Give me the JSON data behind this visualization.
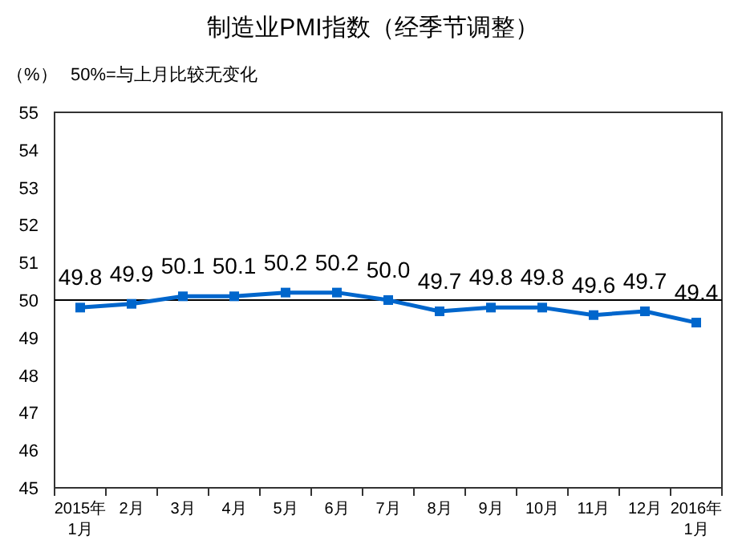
{
  "chart_data": {
    "type": "line",
    "title": "制造业PMI指数（经季节调整）",
    "ylabel": "（%）",
    "annotations": [
      "50%=与上月比较无变化"
    ],
    "categories": [
      "2015年\n1月",
      "2月",
      "3月",
      "4月",
      "5月",
      "6月",
      "7月",
      "8月",
      "9月",
      "10月",
      "11月",
      "12月",
      "2016年\n1月"
    ],
    "series": [
      {
        "color": "#0066cc",
        "values": [
          49.8,
          49.9,
          50.1,
          50.1,
          50.2,
          50.2,
          50.0,
          49.7,
          49.8,
          49.8,
          49.6,
          49.7,
          49.4
        ],
        "value_labels": [
          "49.8",
          "49.9",
          "50.1",
          "50.1",
          "50.2",
          "50.2",
          "50.0",
          "49.7",
          "49.8",
          "49.8",
          "49.6",
          "49.7",
          "49.4"
        ]
      }
    ],
    "ylim": [
      45,
      55
    ],
    "yticks": [
      45,
      46,
      47,
      48,
      49,
      50,
      51,
      52,
      53,
      54,
      55
    ],
    "ref_lines": [
      {
        "axis": "y",
        "value": 50,
        "color": "#000000"
      }
    ],
    "marker": "square",
    "line_style": "solid",
    "grid": false
  }
}
